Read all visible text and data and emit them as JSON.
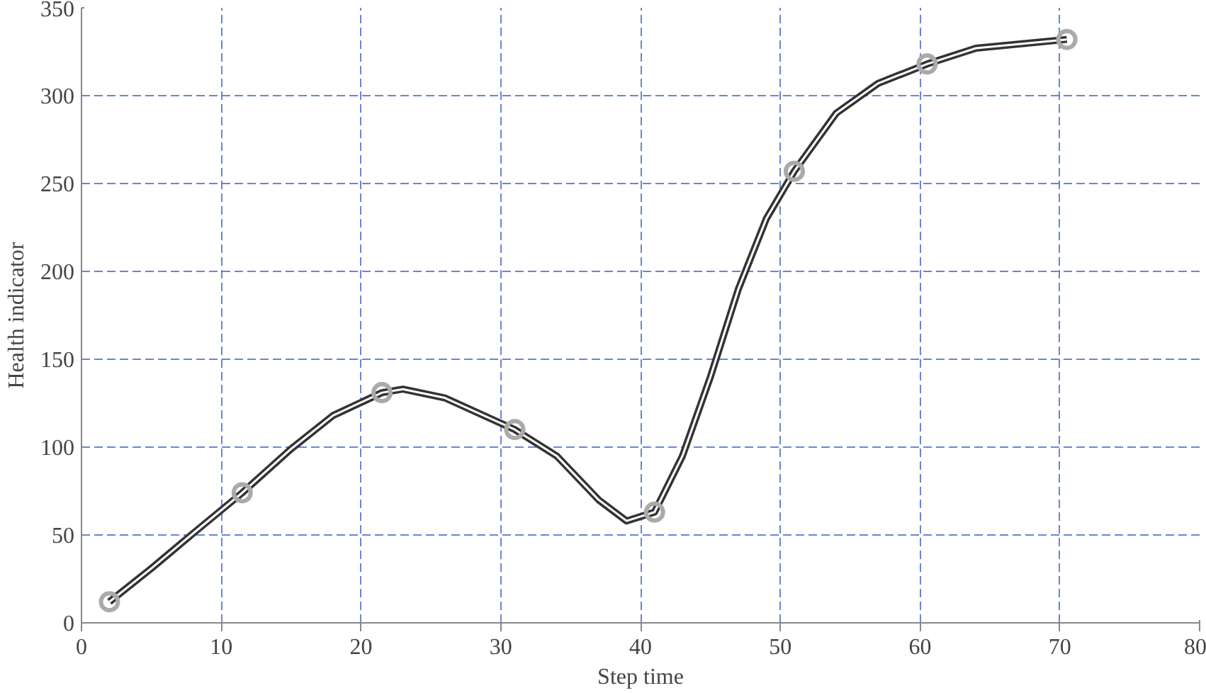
{
  "chart_data": {
    "type": "line",
    "xlabel": "Step time",
    "ylabel": "Health indicator",
    "series": [
      {
        "color": "#333333",
        "marker": "none",
        "x": [
          2,
          5,
          8,
          11.5,
          15,
          18,
          21.5,
          23,
          26,
          31,
          34,
          37,
          39,
          41,
          43,
          45,
          47,
          49,
          51,
          54,
          57,
          60.5,
          64,
          70.5
        ],
        "values": [
          12,
          31,
          51,
          74,
          99,
          118,
          131,
          133,
          128,
          110,
          95,
          70,
          58,
          63,
          95,
          140,
          190,
          230,
          257,
          290,
          307,
          318,
          327,
          332
        ]
      },
      {
        "type": "scatter",
        "color": "#aaaaaa",
        "x": [
          2,
          11.5,
          21.5,
          31,
          41,
          51,
          60.5,
          70.5
        ],
        "values": [
          12,
          74,
          131,
          110,
          63,
          257,
          318,
          332
        ]
      }
    ],
    "xlim": [
      0,
      80
    ],
    "xticks": [
      0,
      10,
      20,
      30,
      40,
      50,
      60,
      70,
      80
    ],
    "ylim": [
      0,
      350
    ],
    "yticks": [
      0,
      50,
      100,
      150,
      200,
      250,
      300,
      350
    ],
    "grid": true,
    "marker": "circle",
    "line_style": "solid"
  }
}
